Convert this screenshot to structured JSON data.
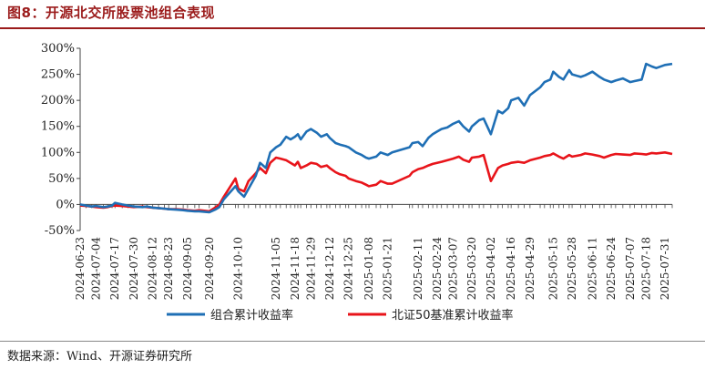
{
  "figure": {
    "title": "图8：开源北交所股票池组合表现",
    "source": "数据来源：Wind、开源证券研究所"
  },
  "chart_data": {
    "type": "line",
    "title": "图8：开源北交所股票池组合表现",
    "xlabel": "",
    "ylabel": "",
    "ylim": [
      -50,
      300
    ],
    "yticks": [
      -50,
      0,
      50,
      100,
      150,
      200,
      250,
      300
    ],
    "ytick_labels": [
      "-50%",
      "0%",
      "50%",
      "100%",
      "150%",
      "200%",
      "250%",
      "300%"
    ],
    "x_tick_labels": [
      "2024-06-23",
      "2024-07-04",
      "2024-07-17",
      "2024-07-30",
      "2024-08-12",
      "2024-08-23",
      "2024-09-05",
      "2024-09-20",
      "2024-10-10",
      "2024-11-05",
      "2024-11-18",
      "2024-11-29",
      "2024-12-12",
      "2024-12-25",
      "2025-01-08",
      "2025-01-21",
      "2025-02-11",
      "2025-02-24",
      "2025-03-07",
      "2025-03-20",
      "2025-04-02",
      "2025-04-16",
      "2025-04-29",
      "2025-05-15",
      "2025-05-28",
      "2025-06-11",
      "2025-06-24",
      "2025-07-07",
      "2025-07-18",
      "2025-07-31"
    ],
    "legend_position": "bottom",
    "grid": false,
    "series": [
      {
        "name": "组合累计收益率",
        "color": "#1f6fb5",
        "x": [
          "2024-06-23",
          "2024-06-27",
          "2024-07-01",
          "2024-07-04",
          "2024-07-09",
          "2024-07-12",
          "2024-07-15",
          "2024-07-17",
          "2024-07-22",
          "2024-07-26",
          "2024-07-30",
          "2024-08-05",
          "2024-08-08",
          "2024-08-12",
          "2024-08-16",
          "2024-08-20",
          "2024-08-23",
          "2024-08-28",
          "2024-09-02",
          "2024-09-05",
          "2024-09-10",
          "2024-09-13",
          "2024-09-20",
          "2024-09-24",
          "2024-09-27",
          "2024-09-30",
          "2024-10-08",
          "2024-10-10",
          "2024-10-14",
          "2024-10-17",
          "2024-10-22",
          "2024-10-25",
          "2024-10-29",
          "2024-11-01",
          "2024-11-05",
          "2024-11-08",
          "2024-11-12",
          "2024-11-15",
          "2024-11-18",
          "2024-11-20",
          "2024-11-22",
          "2024-11-26",
          "2024-11-29",
          "2024-12-03",
          "2024-12-06",
          "2024-12-10",
          "2024-12-12",
          "2024-12-16",
          "2024-12-19",
          "2024-12-23",
          "2024-12-25",
          "2024-12-30",
          "2025-01-03",
          "2025-01-06",
          "2025-01-08",
          "2025-01-13",
          "2025-01-16",
          "2025-01-21",
          "2025-01-24",
          "2025-02-05",
          "2025-02-07",
          "2025-02-11",
          "2025-02-14",
          "2025-02-18",
          "2025-02-21",
          "2025-02-24",
          "2025-02-27",
          "2025-03-03",
          "2025-03-07",
          "2025-03-11",
          "2025-03-14",
          "2025-03-18",
          "2025-03-20",
          "2025-03-25",
          "2025-03-28",
          "2025-04-02",
          "2025-04-07",
          "2025-04-10",
          "2025-04-14",
          "2025-04-16",
          "2025-04-21",
          "2025-04-25",
          "2025-04-29",
          "2025-05-06",
          "2025-05-09",
          "2025-05-13",
          "2025-05-15",
          "2025-05-19",
          "2025-05-22",
          "2025-05-26",
          "2025-05-28",
          "2025-06-03",
          "2025-06-06",
          "2025-06-11",
          "2025-06-16",
          "2025-06-19",
          "2025-06-24",
          "2025-06-27",
          "2025-07-02",
          "2025-07-07",
          "2025-07-10",
          "2025-07-15",
          "2025-07-18",
          "2025-07-22",
          "2025-07-25",
          "2025-07-31",
          "2025-08-05"
        ],
        "values": [
          0,
          -2,
          -4,
          -3,
          -5,
          -4,
          -2,
          3,
          0,
          -2,
          -4,
          -5,
          -4,
          -6,
          -7,
          -8,
          -9,
          -10,
          -11,
          -12,
          -13,
          -13,
          -15,
          -10,
          -5,
          10,
          35,
          25,
          15,
          30,
          55,
          80,
          70,
          100,
          110,
          115,
          130,
          125,
          130,
          135,
          125,
          140,
          145,
          138,
          130,
          135,
          128,
          118,
          115,
          112,
          110,
          100,
          95,
          90,
          88,
          92,
          100,
          95,
          100,
          110,
          118,
          120,
          112,
          128,
          135,
          140,
          145,
          148,
          155,
          160,
          150,
          140,
          150,
          162,
          165,
          135,
          180,
          175,
          185,
          200,
          205,
          190,
          210,
          225,
          235,
          240,
          255,
          245,
          240,
          258,
          250,
          245,
          248,
          255,
          245,
          240,
          235,
          238,
          242,
          235,
          237,
          240,
          270,
          265,
          262,
          268,
          270
        ]
      },
      {
        "name": "北证50基准累计收益率",
        "color": "#e8141a",
        "x": [
          "2024-06-23",
          "2024-06-27",
          "2024-07-01",
          "2024-07-04",
          "2024-07-09",
          "2024-07-12",
          "2024-07-15",
          "2024-07-17",
          "2024-07-22",
          "2024-07-26",
          "2024-07-30",
          "2024-08-05",
          "2024-08-08",
          "2024-08-12",
          "2024-08-16",
          "2024-08-20",
          "2024-08-23",
          "2024-08-28",
          "2024-09-02",
          "2024-09-05",
          "2024-09-10",
          "2024-09-13",
          "2024-09-20",
          "2024-09-24",
          "2024-09-27",
          "2024-09-30",
          "2024-10-08",
          "2024-10-10",
          "2024-10-14",
          "2024-10-17",
          "2024-10-22",
          "2024-10-25",
          "2024-10-29",
          "2024-11-01",
          "2024-11-05",
          "2024-11-08",
          "2024-11-12",
          "2024-11-15",
          "2024-11-18",
          "2024-11-20",
          "2024-11-22",
          "2024-11-26",
          "2024-11-29",
          "2024-12-03",
          "2024-12-06",
          "2024-12-10",
          "2024-12-12",
          "2024-12-16",
          "2024-12-19",
          "2024-12-23",
          "2024-12-25",
          "2024-12-30",
          "2025-01-03",
          "2025-01-06",
          "2025-01-08",
          "2025-01-13",
          "2025-01-16",
          "2025-01-21",
          "2025-01-24",
          "2025-02-05",
          "2025-02-07",
          "2025-02-11",
          "2025-02-14",
          "2025-02-18",
          "2025-02-21",
          "2025-02-24",
          "2025-02-27",
          "2025-03-03",
          "2025-03-07",
          "2025-03-11",
          "2025-03-14",
          "2025-03-18",
          "2025-03-20",
          "2025-03-25",
          "2025-03-28",
          "2025-04-02",
          "2025-04-07",
          "2025-04-10",
          "2025-04-14",
          "2025-04-16",
          "2025-04-21",
          "2025-04-25",
          "2025-04-29",
          "2025-05-06",
          "2025-05-09",
          "2025-05-13",
          "2025-05-15",
          "2025-05-19",
          "2025-05-22",
          "2025-05-26",
          "2025-05-28",
          "2025-06-03",
          "2025-06-06",
          "2025-06-11",
          "2025-06-16",
          "2025-06-19",
          "2025-06-24",
          "2025-06-27",
          "2025-07-02",
          "2025-07-07",
          "2025-07-10",
          "2025-07-15",
          "2025-07-18",
          "2025-07-22",
          "2025-07-25",
          "2025-07-31",
          "2025-08-05"
        ],
        "values": [
          -2,
          -3,
          -4,
          -5,
          -6,
          -5,
          -3,
          -2,
          -3,
          -4,
          -5,
          -4,
          -5,
          -6,
          -7,
          -8,
          -9,
          -9,
          -10,
          -11,
          -12,
          -11,
          -13,
          -6,
          0,
          15,
          50,
          30,
          25,
          45,
          60,
          70,
          60,
          80,
          90,
          88,
          85,
          80,
          75,
          82,
          70,
          75,
          80,
          78,
          72,
          75,
          70,
          62,
          58,
          55,
          50,
          45,
          42,
          38,
          35,
          38,
          45,
          40,
          40,
          55,
          62,
          68,
          70,
          75,
          78,
          80,
          82,
          85,
          88,
          92,
          86,
          82,
          90,
          92,
          95,
          45,
          70,
          75,
          78,
          80,
          82,
          80,
          85,
          90,
          93,
          95,
          98,
          92,
          88,
          95,
          92,
          95,
          98,
          96,
          93,
          90,
          95,
          97,
          96,
          95,
          98,
          97,
          96,
          99,
          98,
          100,
          97
        ]
      }
    ]
  }
}
